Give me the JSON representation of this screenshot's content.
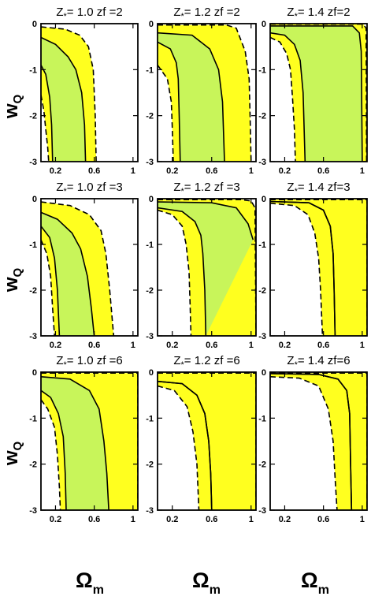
{
  "figure": {
    "ylabel_main": "w",
    "ylabel_sub": "Q",
    "xlabel_main": "Ω",
    "xlabel_sub": "m"
  },
  "colors": {
    "inner": "#c8f55a",
    "outer": "#ffff1f",
    "line": "#000000"
  },
  "chart_data": [
    {
      "type": "area",
      "title": "Z*=1.0 zf=2",
      "title_main": "Z",
      "title_sub": "*",
      "title_rest": "= 1.0  zf =2",
      "xlim": [
        0.05,
        1.05
      ],
      "ylim": [
        -3,
        0
      ],
      "xticks": [
        0.2,
        0.6,
        1
      ],
      "xticklabels": [
        "0.2",
        "0.6",
        "1"
      ],
      "yticks": [
        0,
        -1,
        -2,
        -3
      ],
      "yticklabels": [
        "0",
        "-1",
        "-2",
        "-3"
      ],
      "contour_outer": [
        [
          0.05,
          -0.07
        ],
        [
          0.3,
          -0.12
        ],
        [
          0.45,
          -0.25
        ],
        [
          0.54,
          -0.5
        ],
        [
          0.59,
          -1.0
        ],
        [
          0.61,
          -2.0
        ],
        [
          0.62,
          -3.0
        ]
      ],
      "contour_inner": [
        [
          0.05,
          -0.3
        ],
        [
          0.2,
          -0.45
        ],
        [
          0.33,
          -0.72
        ],
        [
          0.41,
          -1.0
        ],
        [
          0.47,
          -1.5
        ],
        [
          0.5,
          -2.2
        ],
        [
          0.51,
          -3.0
        ]
      ],
      "contour_inner2": [
        [
          0.05,
          -0.9
        ],
        [
          0.1,
          -1.1
        ],
        [
          0.14,
          -1.6
        ],
        [
          0.16,
          -2.2
        ],
        [
          0.17,
          -3.0
        ]
      ],
      "contour_outer2": [
        [
          0.05,
          -1.55
        ],
        [
          0.08,
          -1.9
        ],
        [
          0.1,
          -2.3
        ],
        [
          0.12,
          -2.7
        ],
        [
          0.13,
          -3.0
        ]
      ]
    },
    {
      "type": "area",
      "title": "Z*=1.2 zf=2",
      "title_main": "Z",
      "title_sub": "*",
      "title_rest": "= 1.2  zf =2",
      "xlim": [
        0.05,
        1.05
      ],
      "ylim": [
        -3,
        0
      ],
      "xticks": [
        0.2,
        0.6,
        1
      ],
      "xticklabels": [
        "0.2",
        "0.6",
        "1"
      ],
      "yticks": [
        0,
        -1,
        -2,
        -3
      ],
      "yticklabels": [
        "0",
        "-1",
        "-2",
        "-3"
      ],
      "contour_outer": [
        [
          0.05,
          -0.03
        ],
        [
          0.75,
          -0.03
        ],
        [
          0.85,
          -0.1
        ],
        [
          0.94,
          -0.6
        ],
        [
          0.98,
          -1.2
        ],
        [
          0.99,
          -2.0
        ],
        [
          1.0,
          -3.0
        ]
      ],
      "contour_inner": [
        [
          0.05,
          -0.2
        ],
        [
          0.4,
          -0.25
        ],
        [
          0.58,
          -0.55
        ],
        [
          0.67,
          -1.0
        ],
        [
          0.71,
          -1.7
        ],
        [
          0.73,
          -3.0
        ]
      ],
      "contour_inner2": [
        [
          0.05,
          -0.4
        ],
        [
          0.18,
          -0.55
        ],
        [
          0.24,
          -0.85
        ],
        [
          0.26,
          -1.2
        ],
        [
          0.27,
          -2.0
        ],
        [
          0.28,
          -3.0
        ]
      ],
      "contour_outer2": [
        [
          0.05,
          -0.9
        ],
        [
          0.15,
          -1.2
        ],
        [
          0.19,
          -1.7
        ],
        [
          0.2,
          -2.3
        ],
        [
          0.21,
          -3.0
        ]
      ]
    },
    {
      "type": "area",
      "title": "Z*=1.4 zf=2",
      "title_main": "Z",
      "title_sub": "*",
      "title_rest": "= 1.4  zf=2",
      "xlim": [
        0.05,
        1.05
      ],
      "ylim": [
        -3,
        0
      ],
      "xticks": [
        0.2,
        0.6,
        1
      ],
      "xticklabels": [
        "0.2",
        "0.6",
        "1"
      ],
      "yticks": [
        0,
        -1,
        -2,
        -3
      ],
      "yticklabels": [
        "0",
        "-1",
        "-2",
        "-3"
      ],
      "contour_outer": [
        [
          0.05,
          -0.01
        ],
        [
          1.01,
          -0.01
        ],
        [
          1.04,
          -0.1
        ],
        [
          1.045,
          -3.0
        ]
      ],
      "contour_inner": [
        [
          0.05,
          -0.05
        ],
        [
          0.9,
          -0.05
        ],
        [
          0.97,
          -0.2
        ],
        [
          0.99,
          -0.6
        ],
        [
          1.0,
          -3.0
        ]
      ],
      "contour_inner2": [
        [
          0.05,
          -0.2
        ],
        [
          0.2,
          -0.25
        ],
        [
          0.3,
          -0.45
        ],
        [
          0.36,
          -0.8
        ],
        [
          0.39,
          -1.5
        ],
        [
          0.41,
          -3.0
        ]
      ],
      "contour_outer2": [
        [
          0.05,
          -0.3
        ],
        [
          0.15,
          -0.4
        ],
        [
          0.22,
          -0.65
        ],
        [
          0.26,
          -1.0
        ],
        [
          0.28,
          -1.6
        ],
        [
          0.3,
          -2.3
        ],
        [
          0.31,
          -3.0
        ]
      ]
    },
    {
      "type": "area",
      "title": "Z*=1.0 zf=3",
      "title_main": "Z",
      "title_sub": "*",
      "title_rest": "= 1.0  zf =3",
      "xlim": [
        0.05,
        1.05
      ],
      "ylim": [
        -3,
        0
      ],
      "xticks": [
        0.2,
        0.6,
        1
      ],
      "xticklabels": [
        "0.2",
        "0.6",
        "1"
      ],
      "yticks": [
        0,
        -1,
        -2,
        -3
      ],
      "yticklabels": [
        "0",
        "-1",
        "-2",
        "-3"
      ],
      "contour_outer": [
        [
          0.05,
          -0.07
        ],
        [
          0.35,
          -0.15
        ],
        [
          0.55,
          -0.35
        ],
        [
          0.67,
          -0.7
        ],
        [
          0.72,
          -1.2
        ],
        [
          0.76,
          -2.0
        ],
        [
          0.8,
          -3.0
        ]
      ],
      "contour_inner": [
        [
          0.05,
          -0.3
        ],
        [
          0.22,
          -0.45
        ],
        [
          0.37,
          -0.75
        ],
        [
          0.46,
          -1.1
        ],
        [
          0.53,
          -1.7
        ],
        [
          0.57,
          -2.4
        ],
        [
          0.6,
          -3.0
        ]
      ],
      "contour_inner2": [
        [
          0.05,
          -0.6
        ],
        [
          0.14,
          -0.85
        ],
        [
          0.19,
          -1.3
        ],
        [
          0.22,
          -2.0
        ],
        [
          0.24,
          -3.0
        ]
      ],
      "contour_outer2": [
        [
          0.05,
          -0.9
        ],
        [
          0.11,
          -1.2
        ],
        [
          0.15,
          -1.7
        ],
        [
          0.17,
          -2.4
        ],
        [
          0.19,
          -3.0
        ]
      ]
    },
    {
      "type": "area",
      "title": "Z*=1.2 zf=3",
      "title_main": "Z",
      "title_sub": "*",
      "title_rest": "= 1.2  zf =3",
      "xlim": [
        0.05,
        1.05
      ],
      "ylim": [
        -3,
        0
      ],
      "xticks": [
        0.2,
        0.6,
        1
      ],
      "xticklabels": [
        "0.2",
        "0.6",
        "1"
      ],
      "yticks": [
        0,
        -1,
        -2,
        -3
      ],
      "yticklabels": [
        "0",
        "-1",
        "-2",
        "-3"
      ],
      "contour_outer": [
        [
          0.05,
          -0.02
        ],
        [
          0.9,
          -0.02
        ],
        [
          1.0,
          -0.05
        ],
        [
          1.04,
          -0.2
        ],
        [
          1.05,
          -3.0
        ]
      ],
      "contour_inner": [
        [
          0.05,
          -0.07
        ],
        [
          0.6,
          -0.09
        ],
        [
          0.85,
          -0.2
        ],
        [
          0.97,
          -0.55
        ],
        [
          1.02,
          -0.9
        ]
      ],
      "contour_inner2": [
        [
          0.05,
          -0.2
        ],
        [
          0.3,
          -0.28
        ],
        [
          0.43,
          -0.5
        ],
        [
          0.49,
          -0.8
        ],
        [
          0.51,
          -1.2
        ],
        [
          0.53,
          -2.0
        ],
        [
          0.54,
          -3.0
        ]
      ],
      "contour_outer2": [
        [
          0.05,
          -0.25
        ],
        [
          0.2,
          -0.35
        ],
        [
          0.3,
          -0.6
        ],
        [
          0.34,
          -1.0
        ],
        [
          0.37,
          -1.6
        ],
        [
          0.38,
          -2.3
        ],
        [
          0.39,
          -3.0
        ]
      ]
    },
    {
      "type": "area",
      "title": "Z*=1.4 zf=3",
      "title_main": "Z",
      "title_sub": "*",
      "title_rest": "= 1.4  zf=3",
      "xlim": [
        0.05,
        1.05
      ],
      "ylim": [
        -3,
        0
      ],
      "xticks": [
        0.2,
        0.6,
        1
      ],
      "xticklabels": [
        "0.2",
        "0.6",
        "1"
      ],
      "yticks": [
        0,
        -1,
        -2,
        -3
      ],
      "yticklabels": [
        "0",
        "-1",
        "-2",
        "-3"
      ],
      "contour_outer": [
        [
          0.05,
          -0.02
        ],
        [
          1.05,
          -0.02
        ],
        [
          1.05,
          -3.0
        ]
      ],
      "contour_inner": [
        [
          0.05,
          -0.06
        ],
        [
          0.45,
          -0.09
        ],
        [
          0.6,
          -0.25
        ],
        [
          0.67,
          -0.6
        ],
        [
          0.7,
          -1.2
        ],
        [
          0.71,
          -2.0
        ],
        [
          0.72,
          -3.0
        ]
      ],
      "contour_inner2": [
        [
          0.05,
          -0.06
        ],
        [
          0.45,
          -0.09
        ],
        [
          0.6,
          -0.25
        ],
        [
          0.67,
          -0.6
        ],
        [
          0.7,
          -1.2
        ],
        [
          0.71,
          -2.0
        ],
        [
          0.72,
          -3.0
        ]
      ],
      "contour_outer2": [
        [
          0.05,
          -0.1
        ],
        [
          0.3,
          -0.15
        ],
        [
          0.44,
          -0.35
        ],
        [
          0.51,
          -0.75
        ],
        [
          0.55,
          -1.3
        ],
        [
          0.57,
          -2.0
        ],
        [
          0.59,
          -3.0
        ]
      ]
    },
    {
      "type": "area",
      "title": "Z*=1.0 zf=6",
      "title_main": "Z",
      "title_sub": "*",
      "title_rest": "= 1.0  zf =6",
      "xlim": [
        0.05,
        1.05
      ],
      "ylim": [
        -3,
        0
      ],
      "xticks": [
        0.2,
        0.6,
        1
      ],
      "xticklabels": [
        "0.2",
        "0.6",
        "1"
      ],
      "yticks": [
        0,
        -1,
        -2,
        -3
      ],
      "yticklabels": [
        "0",
        "-1",
        "-2",
        "-3"
      ],
      "contour_outer": [
        [
          0.05,
          -0.02
        ],
        [
          1.05,
          -0.02
        ],
        [
          1.05,
          -3.0
        ]
      ],
      "contour_inner": [
        [
          0.05,
          -0.1
        ],
        [
          0.35,
          -0.15
        ],
        [
          0.55,
          -0.4
        ],
        [
          0.65,
          -0.8
        ],
        [
          0.7,
          -1.5
        ],
        [
          0.73,
          -2.2
        ],
        [
          0.75,
          -3.0
        ]
      ],
      "contour_inner2": [
        [
          0.05,
          -0.4
        ],
        [
          0.15,
          -0.55
        ],
        [
          0.23,
          -0.9
        ],
        [
          0.28,
          -1.4
        ],
        [
          0.3,
          -2.2
        ],
        [
          0.31,
          -3.0
        ]
      ],
      "contour_outer2": [
        [
          0.05,
          -0.6
        ],
        [
          0.12,
          -0.8
        ],
        [
          0.19,
          -1.2
        ],
        [
          0.22,
          -1.8
        ],
        [
          0.24,
          -2.5
        ],
        [
          0.25,
          -3.0
        ]
      ]
    },
    {
      "type": "area",
      "title": "Z*=1.2 zf=6",
      "title_main": "Z",
      "title_sub": "*",
      "title_rest": "= 1.2  zf =6",
      "xlim": [
        0.05,
        1.05
      ],
      "ylim": [
        -3,
        0
      ],
      "xticks": [
        0.2,
        0.6,
        1
      ],
      "xticklabels": [
        "0.2",
        "0.6",
        "1"
      ],
      "yticks": [
        0,
        -1,
        -2,
        -3
      ],
      "yticklabels": [
        "0",
        "-1",
        "-2",
        "-3"
      ],
      "contour_outer": [
        [
          0.05,
          -0.02
        ],
        [
          1.05,
          -0.02
        ],
        [
          1.05,
          -3.0
        ]
      ],
      "contour_inner": [
        [
          0.05,
          -0.2
        ],
        [
          0.3,
          -0.25
        ],
        [
          0.45,
          -0.5
        ],
        [
          0.53,
          -0.9
        ],
        [
          0.57,
          -1.5
        ],
        [
          0.59,
          -2.2
        ],
        [
          0.6,
          -3.0
        ]
      ],
      "contour_inner2": [
        [
          0.05,
          -0.2
        ],
        [
          0.3,
          -0.25
        ],
        [
          0.45,
          -0.5
        ],
        [
          0.53,
          -0.9
        ],
        [
          0.57,
          -1.5
        ],
        [
          0.59,
          -2.2
        ],
        [
          0.6,
          -3.0
        ]
      ],
      "contour_outer2": [
        [
          0.05,
          -0.3
        ],
        [
          0.22,
          -0.4
        ],
        [
          0.35,
          -0.75
        ],
        [
          0.41,
          -1.3
        ],
        [
          0.45,
          -2.0
        ],
        [
          0.47,
          -3.0
        ]
      ]
    },
    {
      "type": "area",
      "title": "Z*=1.4 zf=6",
      "title_main": "Z",
      "title_sub": "*",
      "title_rest": "= 1.4  zf=6",
      "xlim": [
        0.05,
        1.05
      ],
      "ylim": [
        -3,
        0
      ],
      "xticks": [
        0.2,
        0.6,
        1
      ],
      "xticklabels": [
        "0.2",
        "0.6",
        "1"
      ],
      "yticks": [
        0,
        -1,
        -2,
        -3
      ],
      "yticklabels": [
        "0",
        "-1",
        "-2",
        "-3"
      ],
      "contour_outer": [
        [
          0.05,
          -0.02
        ],
        [
          1.05,
          -0.02
        ],
        [
          1.05,
          -3.0
        ]
      ],
      "contour_inner": [
        [
          0.05,
          -0.03
        ],
        [
          0.55,
          -0.05
        ],
        [
          0.75,
          -0.15
        ],
        [
          0.84,
          -0.4
        ],
        [
          0.87,
          -0.9
        ],
        [
          0.88,
          -2.0
        ],
        [
          0.89,
          -3.0
        ]
      ],
      "contour_inner2": [
        [
          0.05,
          -0.03
        ],
        [
          0.55,
          -0.05
        ],
        [
          0.75,
          -0.15
        ],
        [
          0.84,
          -0.4
        ],
        [
          0.87,
          -0.9
        ],
        [
          0.88,
          -2.0
        ],
        [
          0.89,
          -3.0
        ]
      ],
      "contour_outer2": [
        [
          0.05,
          -0.1
        ],
        [
          0.35,
          -0.13
        ],
        [
          0.55,
          -0.3
        ],
        [
          0.65,
          -0.8
        ],
        [
          0.7,
          -1.5
        ],
        [
          0.72,
          -2.3
        ],
        [
          0.74,
          -3.0
        ]
      ]
    }
  ]
}
